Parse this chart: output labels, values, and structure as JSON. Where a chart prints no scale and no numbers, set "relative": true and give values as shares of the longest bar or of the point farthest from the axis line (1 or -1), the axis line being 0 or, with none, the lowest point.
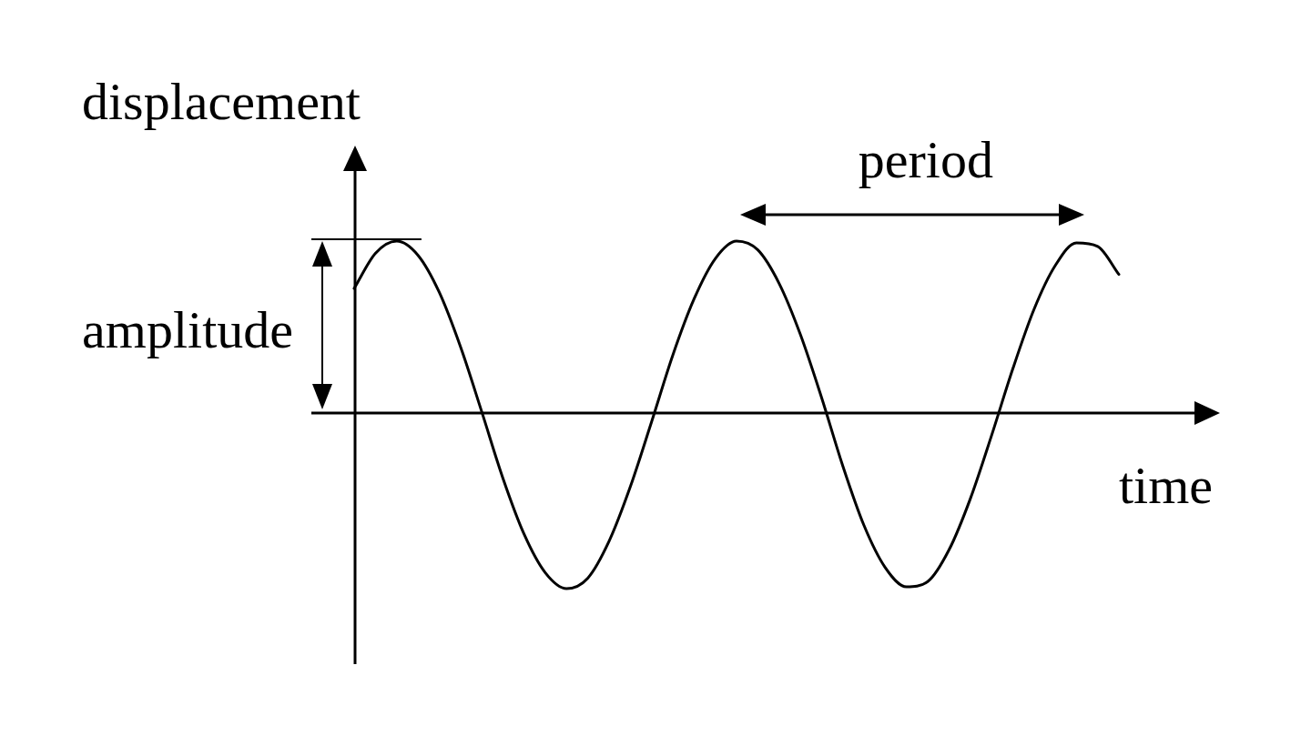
{
  "chart_data": {
    "type": "line",
    "xlabel": "time",
    "ylabel": "displacement",
    "relative": true,
    "marker": "none",
    "line_style": "solid",
    "categories": [
      null,
      null,
      null,
      null,
      null,
      null,
      null,
      null,
      null,
      null,
      null,
      null,
      null,
      null,
      null,
      null,
      null,
      null,
      null,
      null,
      null,
      null,
      null,
      null,
      null,
      null,
      null,
      null,
      null,
      null,
      null,
      null,
      null,
      null,
      null,
      null,
      null
    ],
    "series": [
      {
        "color": "#000000",
        "values": [
          0.71,
          0.91,
          0.98,
          0.9,
          0.69,
          0.38,
          0.01,
          -0.37,
          -0.69,
          -0.91,
          -1.0,
          -0.94,
          -0.73,
          -0.42,
          -0.05,
          0.33,
          0.65,
          0.88,
          0.98,
          0.93,
          0.74,
          0.45,
          0.09,
          -0.3,
          -0.64,
          -0.88,
          -0.99,
          -0.96,
          -0.78,
          -0.49,
          -0.13,
          0.25,
          0.59,
          0.84,
          0.97,
          0.95,
          0.79
        ]
      }
    ],
    "annotations": [
      "amplitude",
      "period"
    ]
  }
}
